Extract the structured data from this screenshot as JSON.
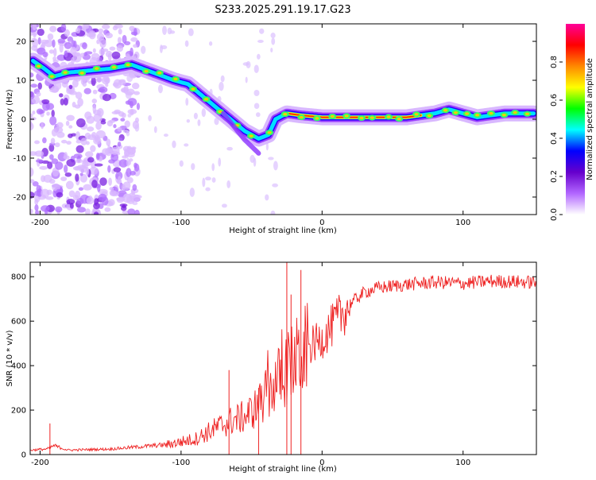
{
  "page_title": "S233.2025.291.19.17.G23",
  "chart_data": [
    {
      "type": "heatmap",
      "title": "S233.2025.291.19.17.G23",
      "xlabel": "Height of straight line (km)",
      "ylabel": "Frequency (Hz)",
      "xlim": [
        -207,
        152
      ],
      "ylim": [
        -24.5,
        24.5
      ],
      "x_ticks": [
        -200,
        -100,
        0,
        100
      ],
      "y_ticks": [
        -20,
        -10,
        0,
        10,
        20
      ],
      "colorbar": {
        "label": "Normalized spectral amplitude",
        "range": [
          0.0,
          1.0
        ],
        "ticks": [
          "0.0",
          "0.2",
          "0.4",
          "0.6",
          "0.8"
        ],
        "stops": [
          "#ffffff",
          "#b266ff",
          "#6600cc",
          "#0000ff",
          "#00ffff",
          "#00ff00",
          "#ffff00",
          "#ff8800",
          "#ff0000",
          "#ff0099"
        ]
      },
      "ridge": {
        "x": [
          -205,
          -197,
          -190,
          -180,
          -165,
          -150,
          -135,
          -120,
          -105,
          -95,
          -85,
          -75,
          -65,
          -55,
          -45,
          -38,
          -33,
          -25,
          -15,
          0,
          20,
          40,
          60,
          80,
          90,
          100,
          110,
          130,
          150
        ],
        "y": [
          15,
          13,
          11,
          12,
          12.5,
          13,
          14,
          12,
          10,
          9,
          6,
          3,
          0,
          -3,
          -5,
          -4,
          0,
          1.5,
          1,
          0.5,
          0.5,
          0.5,
          0.5,
          1.5,
          2.5,
          1.5,
          0.5,
          1.5,
          1.5
        ]
      },
      "noise_extent_km": [
        -207,
        -140
      ]
    },
    {
      "type": "line",
      "xlabel": "Height of straight line (km)",
      "ylabel": "SNR (10 * v/v)",
      "xlim": [
        -207,
        152
      ],
      "ylim": [
        0,
        865
      ],
      "x_ticks": [
        -200,
        -100,
        0,
        100
      ],
      "y_ticks": [
        0,
        200,
        400,
        600,
        800
      ],
      "color": "#ee2222",
      "envelope": {
        "x": [
          -207,
          -195,
          -190,
          -180,
          -150,
          -130,
          -110,
          -90,
          -75,
          -65,
          -55,
          -45,
          -38,
          -32,
          -25,
          -20,
          -10,
          0,
          10,
          20,
          30,
          40,
          60,
          80,
          100,
          120,
          150
        ],
        "y": [
          20,
          25,
          40,
          20,
          25,
          35,
          45,
          70,
          120,
          150,
          170,
          220,
          280,
          330,
          380,
          420,
          480,
          520,
          600,
          680,
          730,
          750,
          765,
          775,
          770,
          780,
          775
        ]
      },
      "spikes": [
        {
          "x": -193,
          "y": 140
        },
        {
          "x": -66,
          "y": 380
        },
        {
          "x": -45,
          "y": 300
        },
        {
          "x": -25,
          "y": 865
        },
        {
          "x": -22,
          "y": 720
        },
        {
          "x": -15,
          "y": 830
        }
      ]
    }
  ]
}
